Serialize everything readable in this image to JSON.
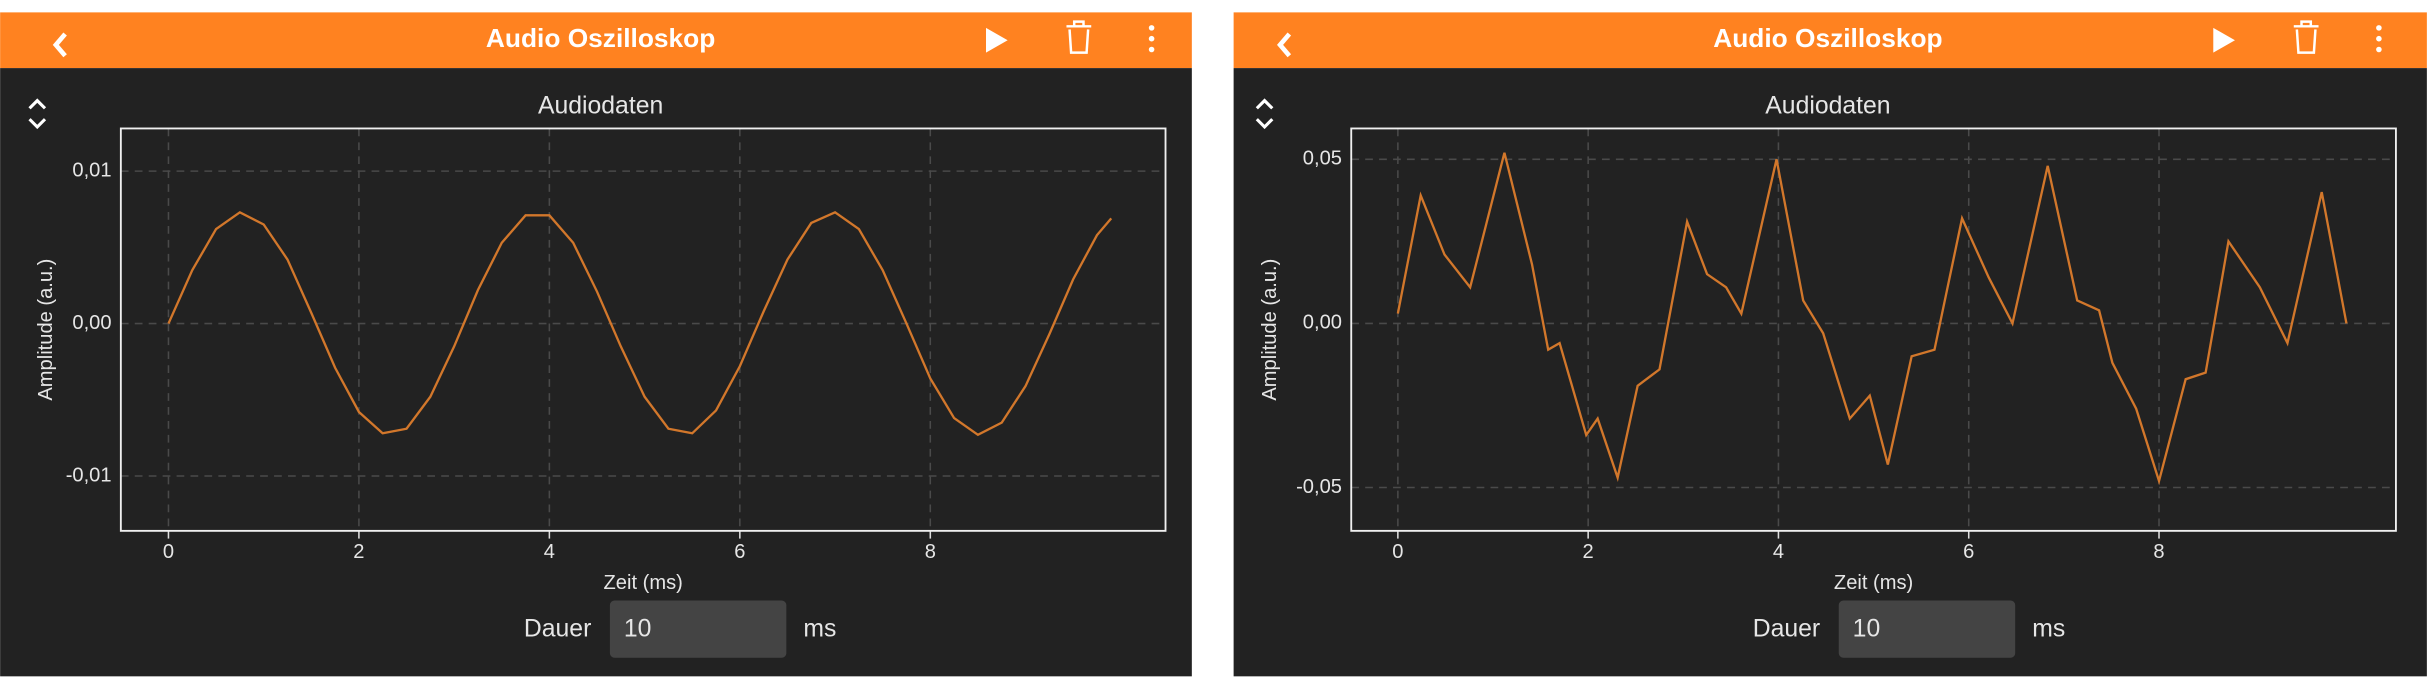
{
  "panels": [
    {
      "title": "Audio Oszilloskop",
      "duration_label": "Dauer",
      "duration_value": "10",
      "duration_unit": "ms"
    },
    {
      "title": "Audio Oszilloskop",
      "duration_label": "Dauer",
      "duration_value": "10",
      "duration_unit": "ms"
    }
  ],
  "chart_data": [
    {
      "type": "line",
      "title": "Audiodaten",
      "xlabel": "Zeit (ms)",
      "ylabel": "Amplitude (a.u.)",
      "color": "#d2772b",
      "grid": true,
      "xlim": [
        -0.5,
        10.47
      ],
      "xticks": [
        0,
        2,
        4,
        6,
        8
      ],
      "ylim": [
        -0.0136,
        0.0128
      ],
      "yticks": [
        {
          "value": -0.01,
          "label": "-0,01"
        },
        {
          "value": 0,
          "label": "0,00"
        },
        {
          "value": 0.01,
          "label": "0,01"
        }
      ],
      "x": [
        0,
        0.25,
        0.5,
        0.75,
        1,
        1.25,
        1.5,
        1.75,
        2,
        2.25,
        2.5,
        2.75,
        3,
        3.25,
        3.5,
        3.75,
        4,
        4.25,
        4.5,
        4.75,
        5,
        5.25,
        5.5,
        5.75,
        6,
        6.25,
        6.5,
        6.75,
        7,
        7.25,
        7.5,
        7.75,
        8,
        8.25,
        8.5,
        8.75,
        9,
        9.25,
        9.5,
        9.75,
        9.9
      ],
      "values": [
        0,
        0.0035,
        0.0062,
        0.0073,
        0.0065,
        0.0042,
        0.0007,
        -0.0029,
        -0.0058,
        -0.0072,
        -0.0069,
        -0.0048,
        -0.0015,
        0.0022,
        0.0053,
        0.0071,
        0.0071,
        0.0053,
        0.0021,
        -0.0015,
        -0.0048,
        -0.0069,
        -0.0072,
        -0.0057,
        -0.0028,
        0.0008,
        0.0042,
        0.0066,
        0.0073,
        0.0062,
        0.0035,
        0,
        -0.0036,
        -0.0062,
        -0.0073,
        -0.0065,
        -0.0041,
        -0.0007,
        0.0029,
        0.0058,
        0.0069
      ]
    },
    {
      "type": "line",
      "title": "Audiodaten",
      "xlabel": "Zeit (ms)",
      "ylabel": "Amplitude (a.u.)",
      "color": "#d2772b",
      "grid": true,
      "xlim": [
        -0.49,
        10.49
      ],
      "xticks": [
        0,
        2,
        4,
        6,
        8
      ],
      "ylim": [
        -0.0632,
        0.0594
      ],
      "yticks": [
        {
          "value": -0.05,
          "label": "-0,05"
        },
        {
          "value": 0,
          "label": "0,00"
        },
        {
          "value": 0.05,
          "label": "0,05"
        }
      ],
      "x": [
        0,
        0.24,
        0.49,
        0.76,
        1.12,
        1.41,
        1.58,
        1.7,
        1.98,
        2.1,
        2.31,
        2.52,
        2.75,
        3.04,
        3.25,
        3.45,
        3.61,
        3.98,
        4.26,
        4.47,
        4.75,
        4.96,
        5.15,
        5.4,
        5.64,
        5.93,
        6.21,
        6.46,
        6.83,
        7.14,
        7.37,
        7.51,
        7.76,
        8.0,
        8.28,
        8.49,
        8.73,
        9.06,
        9.35,
        9.71,
        9.97
      ],
      "values": [
        0.003,
        0.039,
        0.021,
        0.011,
        0.052,
        0.018,
        -0.008,
        -0.006,
        -0.034,
        -0.029,
        -0.047,
        -0.019,
        -0.014,
        0.031,
        0.015,
        0.011,
        0.003,
        0.05,
        0.007,
        -0.003,
        -0.029,
        -0.022,
        -0.043,
        -0.01,
        -0.008,
        0.032,
        0.014,
        0,
        0.048,
        0.007,
        0.004,
        -0.012,
        -0.026,
        -0.048,
        -0.017,
        -0.015,
        0.025,
        0.011,
        -0.006,
        0.04,
        0
      ]
    }
  ]
}
